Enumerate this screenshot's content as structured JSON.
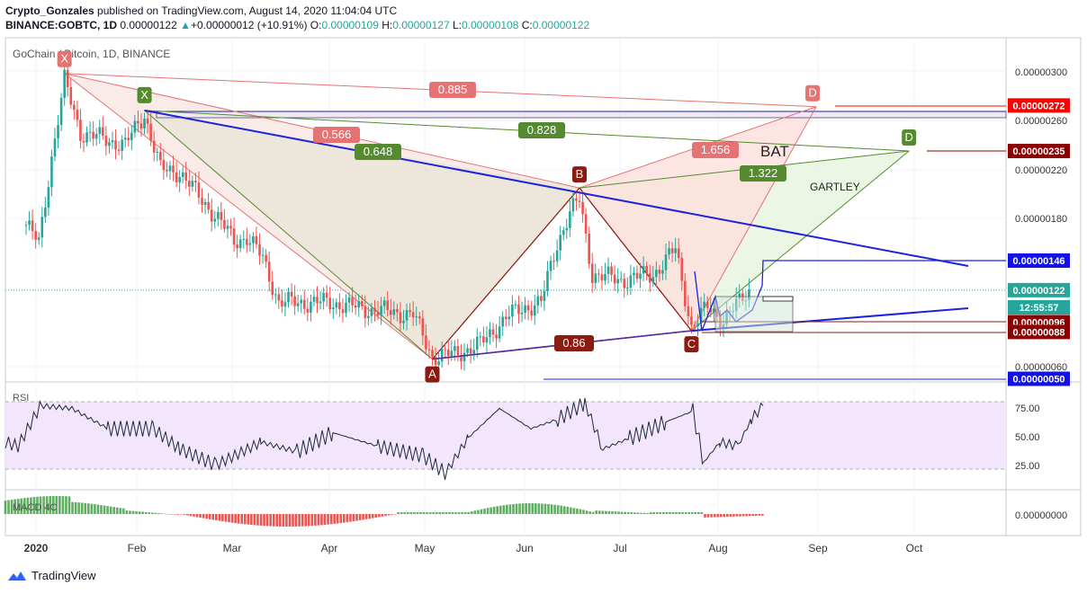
{
  "header": {
    "author": "Crypto_Gonzales",
    "published": "published on TradingView.com, August 14, 2020 11:04:04 UTC",
    "symbol": "BINANCE:GOBTC, 1D",
    "price": "0.00000122",
    "change_arrow": "▲",
    "change": "+0.00000012 (+10.91%)",
    "open_label": "O:",
    "open": "0.00000109",
    "high_label": "H:",
    "high": "0.00000127",
    "low_label": "L:",
    "low": "0.00000108",
    "close_label": "C:",
    "close": "0.00000122"
  },
  "pane_title": "GoChain / Bitcoin, 1D, BINANCE",
  "footer": {
    "brand": "TradingView"
  },
  "colors": {
    "up": "#26a69a",
    "down": "#ef5350",
    "bat": "#e57373",
    "gartley": "#558b2f",
    "trend": "#1e22dc",
    "pattern_dark": "#8b1a10"
  },
  "chart_data": {
    "type": "candlestick",
    "title": "GoChain / Bitcoin, 1D, BINANCE",
    "x_axis": {
      "labels": [
        "2020",
        "Feb",
        "Mar",
        "Apr",
        "May",
        "Jun",
        "Jul",
        "Aug",
        "Sep",
        "Oct"
      ]
    },
    "y_axis": {
      "ticks": [
        "0.00000300",
        "0.00000260",
        "0.00000220",
        "0.00000180",
        "0.00000060"
      ],
      "range": [
        4.5e-07,
        3.1e-06
      ]
    },
    "price_labels": [
      {
        "text": "0.00000272",
        "value": 2.72e-06,
        "color": "#ff0000"
      },
      {
        "text": "0.00000235",
        "value": 2.35e-06,
        "color": "#8b0000"
      },
      {
        "text": "0.00000146",
        "value": 1.46e-06,
        "color": "#1212e6"
      },
      {
        "text": "0.00000122",
        "value": 1.22e-06,
        "color": "#26a69a"
      },
      {
        "text": "12:55:57",
        "value": 1.14e-06,
        "color": "#26a69a"
      },
      {
        "text": "0.00000096",
        "value": 9.6e-07,
        "color": "#8b0000"
      },
      {
        "text": "0.00000088",
        "value": 8.8e-07,
        "color": "#8b0000"
      },
      {
        "text": "0.00000050",
        "value": 5e-07,
        "color": "#1212e6"
      }
    ],
    "pattern_points": [
      {
        "name": "X",
        "pattern": "bat",
        "date": "2020-01-13",
        "value": 2.98e-06
      },
      {
        "name": "X",
        "pattern": "gartley",
        "date": "2020-02-07",
        "value": 2.68e-06
      },
      {
        "name": "A",
        "pattern": "both",
        "date": "2020-05-07",
        "value": 6.6e-07
      },
      {
        "name": "B",
        "pattern": "both",
        "date": "2020-06-22",
        "value": 2.05e-06
      },
      {
        "name": "C",
        "pattern": "both",
        "date": "2020-07-27",
        "value": 8.9e-07
      },
      {
        "name": "D",
        "pattern": "bat",
        "date": "2020-09-04",
        "value": 2.71e-06
      },
      {
        "name": "D",
        "pattern": "gartley",
        "date": "2020-10-03",
        "value": 2.35e-06
      }
    ],
    "ratios": [
      {
        "text": "0.885",
        "pattern": "bat"
      },
      {
        "text": "0.566",
        "pattern": "bat"
      },
      {
        "text": "1.656",
        "pattern": "bat"
      },
      {
        "text": "0.828",
        "pattern": "gartley"
      },
      {
        "text": "0.648",
        "pattern": "gartley"
      },
      {
        "text": "1.322",
        "pattern": "gartley"
      },
      {
        "text": "0.86",
        "pattern": "both"
      }
    ],
    "pattern_names": [
      "BAT",
      "GARTLEY"
    ],
    "rsi": {
      "label": "RSI",
      "ticks": [
        "75.00",
        "50.00",
        "25.00"
      ],
      "band": [
        30,
        70
      ],
      "last": 72
    },
    "macd": {
      "label": "MACD 4C",
      "tick": "0.00000000"
    }
  }
}
